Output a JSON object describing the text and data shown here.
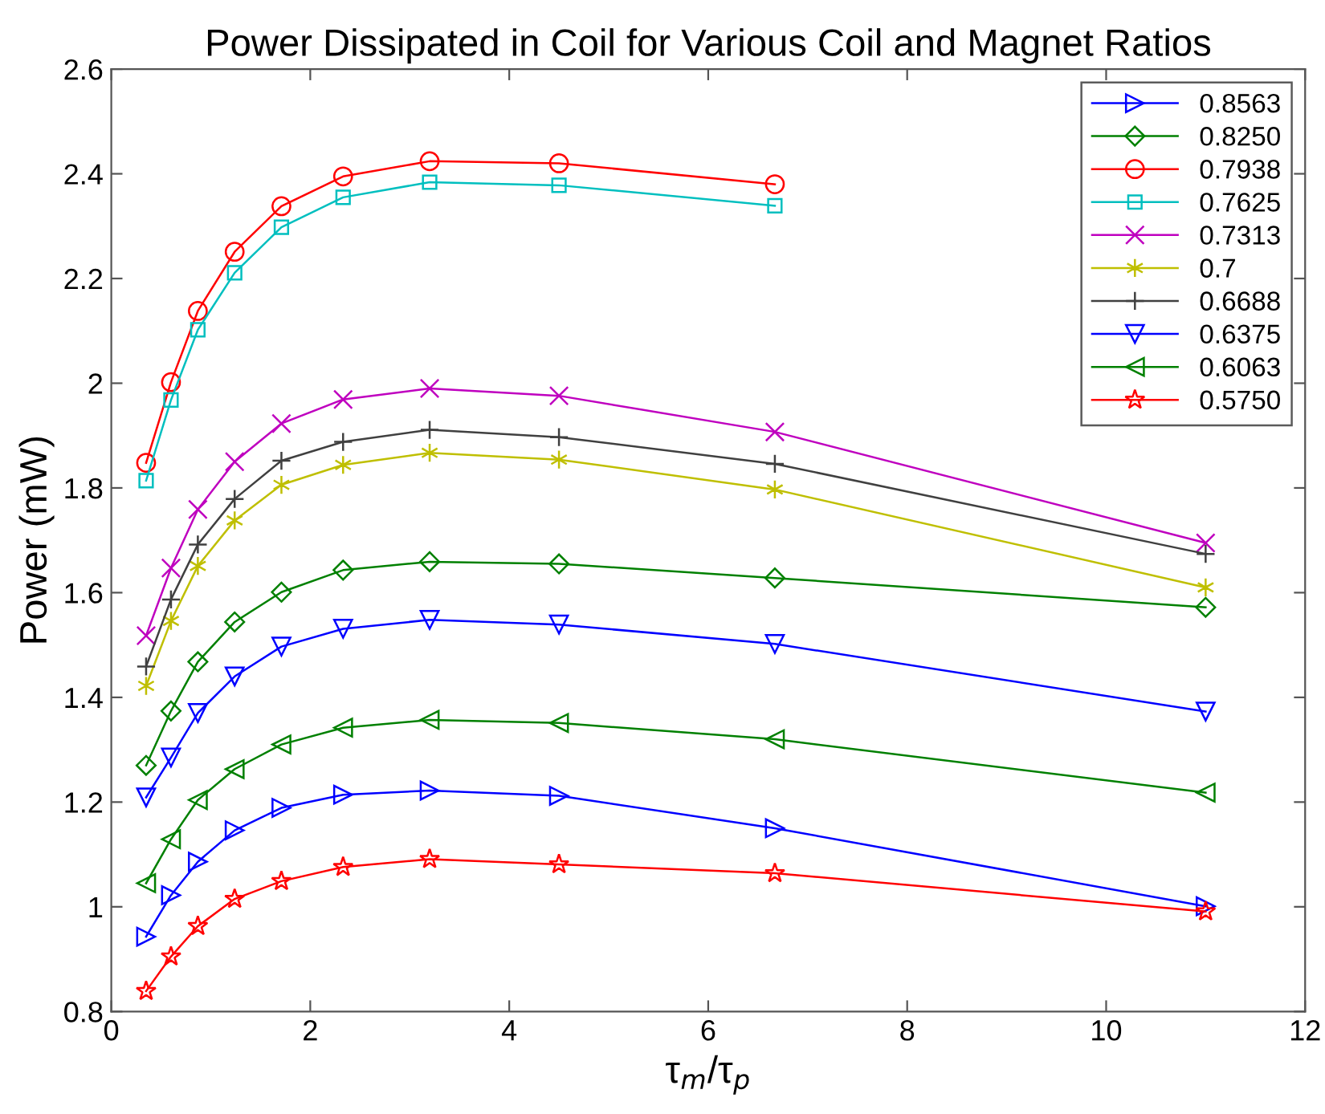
{
  "chart_data": {
    "type": "line",
    "title": "Power Dissipated in Coil for Various Coil and Magnet Ratios",
    "xlabel": "τ$_{m}$/τ$_{p}$",
    "ylabel": "Power (mW)",
    "x": [
      0.35,
      0.6,
      0.87,
      1.24,
      1.71,
      2.33,
      3.2,
      4.5,
      6.67,
      11
    ],
    "xlim": [
      0,
      12
    ],
    "xticks": [
      0,
      2,
      4,
      6,
      8,
      10,
      12
    ],
    "ylim": [
      0.8,
      2.6
    ],
    "yticks": [
      0.8,
      1,
      1.2,
      1.4,
      1.6,
      1.8,
      2,
      2.2,
      2.4,
      2.6
    ],
    "grid": false,
    "legend": "top right",
    "line_style": "solid",
    "series": [
      {
        "name": "0.8563",
        "color": "#0000ff",
        "marker": "triangle-right",
        "values": [
          0.943,
          1.022,
          1.086,
          1.146,
          1.189,
          1.214,
          1.222,
          1.212,
          1.15,
          1.001
        ]
      },
      {
        "name": "0.8250",
        "color": "#008000",
        "marker": "diamond",
        "values": [
          1.27,
          1.374,
          1.468,
          1.544,
          1.601,
          1.643,
          1.659,
          1.655,
          1.628,
          1.572
        ]
      },
      {
        "name": "0.7938",
        "color": "#ff0000",
        "marker": "circle",
        "values": [
          1.848,
          2.002,
          2.138,
          2.251,
          2.338,
          2.395,
          2.424,
          2.42,
          2.38,
          null
        ]
      },
      {
        "name": "0.7625",
        "color": "#00bfbf",
        "marker": "square",
        "values": [
          1.814,
          1.968,
          2.102,
          2.211,
          2.298,
          2.355,
          2.384,
          2.378,
          2.339,
          null
        ]
      },
      {
        "name": "0.7313",
        "color": "#bf00bf",
        "marker": "x",
        "values": [
          1.518,
          1.647,
          1.759,
          1.85,
          1.923,
          1.969,
          1.99,
          1.976,
          1.907,
          1.695
        ]
      },
      {
        "name": "0.7",
        "color": "#bfbf00",
        "marker": "cross",
        "values": [
          1.422,
          1.546,
          1.651,
          1.738,
          1.806,
          1.844,
          1.867,
          1.854,
          1.797,
          1.61
        ]
      },
      {
        "name": "0.6688",
        "color": "#404040",
        "marker": "plus",
        "values": [
          1.459,
          1.587,
          1.692,
          1.779,
          1.852,
          1.888,
          1.911,
          1.897,
          1.846,
          1.674
        ]
      },
      {
        "name": "0.6375",
        "color": "#0000ff",
        "marker": "triangle-down",
        "values": [
          1.209,
          1.285,
          1.37,
          1.44,
          1.497,
          1.531,
          1.548,
          1.539,
          1.502,
          1.373
        ]
      },
      {
        "name": "0.6063",
        "color": "#008000",
        "marker": "triangle-left",
        "values": [
          1.045,
          1.129,
          1.204,
          1.263,
          1.31,
          1.342,
          1.357,
          1.351,
          1.32,
          1.218
        ]
      },
      {
        "name": "0.5750",
        "color": "#ff0000",
        "marker": "star",
        "values": [
          0.839,
          0.905,
          0.963,
          1.015,
          1.049,
          1.076,
          1.091,
          1.081,
          1.064,
          0.991
        ]
      }
    ]
  }
}
